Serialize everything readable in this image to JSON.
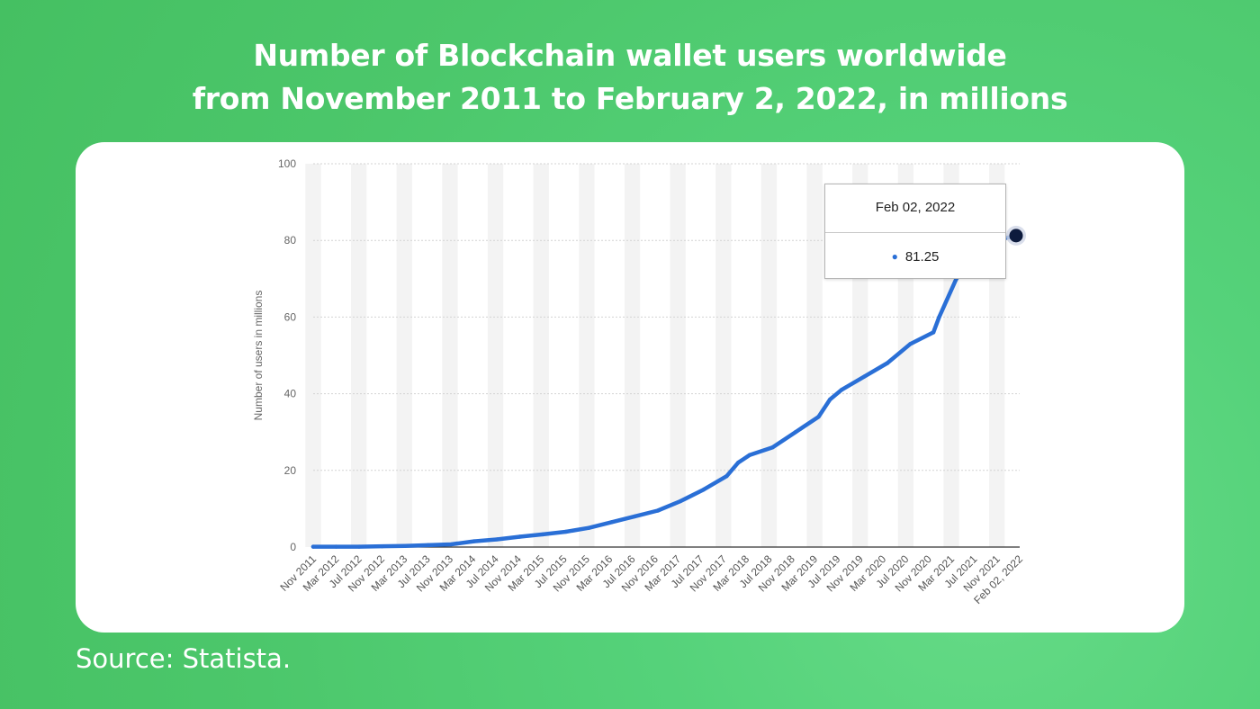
{
  "title": {
    "line1": "Number of Blockchain wallet users worldwide",
    "line2": "from November 2011 to February 2, 2022, in millions"
  },
  "source": "Source: Statista.",
  "colors": {
    "line": "#2a6fd6",
    "marker": "#0d1b3d",
    "background": "#4cc76b"
  },
  "tooltip": {
    "date": "Feb 02, 2022",
    "value": "81.25"
  },
  "chart_data": {
    "type": "line",
    "title": "Number of Blockchain wallet users worldwide from November 2011 to February 2, 2022, in millions",
    "xlabel": "",
    "ylabel": "Number of users in millions",
    "ylim": [
      0,
      100
    ],
    "yticks": [
      0,
      20,
      40,
      60,
      80,
      100
    ],
    "grid": true,
    "x_tick_labels": [
      "Nov 2011",
      "Mar 2012",
      "Jul 2012",
      "Nov 2012",
      "Mar 2013",
      "Jul 2013",
      "Nov 2013",
      "Mar 2014",
      "Jul 2014",
      "Nov 2014",
      "Mar 2015",
      "Jul 2015",
      "Nov 2015",
      "Mar 2016",
      "Jul 2016",
      "Nov 2016",
      "Mar 2017",
      "Jul 2017",
      "Nov 2017",
      "Mar 2018",
      "Jul 2018",
      "Nov 2018",
      "Mar 2019",
      "Jul 2019",
      "Nov 2019",
      "Mar 2020",
      "Jul 2020",
      "Nov 2020",
      "Mar 2021",
      "Jul 2021",
      "Nov 2021",
      "Feb 02, 2022"
    ],
    "series": [
      {
        "name": "",
        "x": [
          "Nov 2011",
          "Mar 2012",
          "Jul 2012",
          "Nov 2012",
          "Mar 2013",
          "Jul 2013",
          "Nov 2013",
          "Mar 2014",
          "Jul 2014",
          "Nov 2014",
          "Mar 2015",
          "Jul 2015",
          "Nov 2015",
          "Mar 2016",
          "Jul 2016",
          "Nov 2016",
          "Mar 2017",
          "Jul 2017",
          "Nov 2017",
          "Jan 2018",
          "Mar 2018",
          "Jul 2018",
          "Nov 2018",
          "Mar 2019",
          "May 2019",
          "Jul 2019",
          "Nov 2019",
          "Mar 2020",
          "Jul 2020",
          "Nov 2020",
          "Dec 2020",
          "Mar 2021",
          "Jul 2021",
          "Nov 2021",
          "Feb 02, 2022"
        ],
        "values": [
          0.1,
          0.1,
          0.1,
          0.2,
          0.3,
          0.5,
          0.7,
          1.5,
          2.0,
          2.7,
          3.3,
          4.0,
          5.0,
          6.5,
          8.0,
          9.5,
          12.0,
          15.0,
          18.5,
          22.0,
          24.0,
          26.0,
          30.0,
          34.0,
          38.5,
          41.0,
          44.5,
          48.0,
          53.0,
          56.0,
          60.0,
          70.0,
          77.5,
          80.5,
          81.25
        ]
      }
    ]
  }
}
